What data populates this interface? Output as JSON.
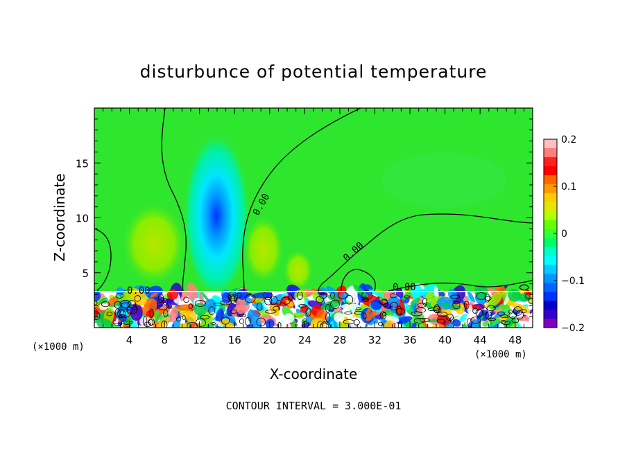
{
  "chart_data": {
    "type": "heatmap",
    "title": "disturbunce of potential temperature",
    "xlabel": "X-coordinate",
    "ylabel": "Z-coordinate",
    "x_unit": "(×1000 m)",
    "x_unit_right": "(×1000 m)",
    "xlim": [
      0,
      50
    ],
    "ylim": [
      0,
      20
    ],
    "x_ticks": [
      4,
      8,
      12,
      16,
      20,
      24,
      28,
      32,
      36,
      40,
      44,
      48
    ],
    "y_ticks": [
      5,
      10,
      15
    ],
    "colorbar": {
      "min": -0.2,
      "max": 0.2,
      "tick_values": [
        0.2,
        0.1,
        0,
        -0.1,
        -0.2
      ],
      "tick_labels": [
        "0.2",
        "0.1",
        "0",
        "−0.1",
        "−0.2"
      ],
      "colors": [
        "#ffbfbf",
        "#ff7f7f",
        "#ff2020",
        "#ff0000",
        "#ff6600",
        "#ff9900",
        "#ffcc00",
        "#e6e600",
        "#b3ff00",
        "#66ff00",
        "#33ff33",
        "#00ff66",
        "#00ffcc",
        "#00ffff",
        "#00ccff",
        "#0099ff",
        "#0066ff",
        "#0033ff",
        "#0000cc",
        "#3300cc",
        "#7f00bf"
      ]
    },
    "contour_labels": [
      "0.00",
      "0.00",
      "0.00",
      "0.00"
    ],
    "footer": "CONTOUR INTERVAL = 3.000E-01",
    "colors": {
      "background_field": "#2ee62e",
      "cold_core": "#00bfff",
      "warm_patch": "#9be600"
    }
  }
}
